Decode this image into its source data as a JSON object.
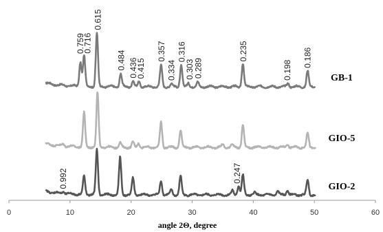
{
  "chart_data": {
    "type": "line",
    "xlabel": "angle 2Θ, degree",
    "ylabel": "",
    "xlim": [
      0,
      60
    ],
    "xticks": [
      "0",
      "10",
      "20",
      "30",
      "40",
      "50",
      "60"
    ],
    "grid": false,
    "series": [
      {
        "name": "GB-1",
        "color": "#7a7a7a",
        "offset": 2.0,
        "peaks": [
          {
            "x": 11.7,
            "h": 0.34
          },
          {
            "x": 12.3,
            "h": 0.43
          },
          {
            "x": 14.4,
            "h": 0.74
          },
          {
            "x": 18.3,
            "h": 0.18
          },
          {
            "x": 20.3,
            "h": 0.08
          },
          {
            "x": 21.3,
            "h": 0.07
          },
          {
            "x": 24.9,
            "h": 0.3
          },
          {
            "x": 26.6,
            "h": 0.04
          },
          {
            "x": 28.2,
            "h": 0.3
          },
          {
            "x": 29.4,
            "h": 0.05
          },
          {
            "x": 30.9,
            "h": 0.06
          },
          {
            "x": 38.3,
            "h": 0.32
          },
          {
            "x": 45.7,
            "h": 0.05
          },
          {
            "x": 48.9,
            "h": 0.22
          }
        ],
        "peak_labels": [
          {
            "x": 11.7,
            "text": "0.759"
          },
          {
            "x": 12.9,
            "text": "0.716"
          },
          {
            "x": 14.6,
            "text": "0.615"
          },
          {
            "x": 18.4,
            "text": "0.484"
          },
          {
            "x": 20.4,
            "text": "0.436"
          },
          {
            "x": 21.6,
            "text": "0.415"
          },
          {
            "x": 25.0,
            "text": "0.357"
          },
          {
            "x": 26.6,
            "text": "0.334"
          },
          {
            "x": 28.3,
            "text": "0.316"
          },
          {
            "x": 29.6,
            "text": "0.303"
          },
          {
            "x": 31.0,
            "text": "0.289"
          },
          {
            "x": 38.4,
            "text": "0.235"
          },
          {
            "x": 45.6,
            "text": "0.198"
          },
          {
            "x": 48.9,
            "text": "0.186"
          }
        ]
      },
      {
        "name": "GIO-5",
        "color": "#b4b4b4",
        "offset": 1.0,
        "peaks": [
          {
            "x": 8.9,
            "h": 0.03
          },
          {
            "x": 12.3,
            "h": 0.47
          },
          {
            "x": 14.5,
            "h": 0.75
          },
          {
            "x": 18.2,
            "h": 0.06
          },
          {
            "x": 20.3,
            "h": 0.07
          },
          {
            "x": 21.2,
            "h": 0.06
          },
          {
            "x": 24.9,
            "h": 0.35
          },
          {
            "x": 28.1,
            "h": 0.24
          },
          {
            "x": 35.0,
            "h": 0.04
          },
          {
            "x": 36.5,
            "h": 0.04
          },
          {
            "x": 38.3,
            "h": 0.31
          },
          {
            "x": 45.6,
            "h": 0.05
          },
          {
            "x": 48.9,
            "h": 0.2
          }
        ],
        "peak_labels": []
      },
      {
        "name": "GIO-2",
        "color": "#555555",
        "offset": 0.0,
        "peaks": [
          {
            "x": 8.9,
            "h": 0.03
          },
          {
            "x": 12.3,
            "h": 0.25
          },
          {
            "x": 14.4,
            "h": 0.62
          },
          {
            "x": 18.2,
            "h": 0.52
          },
          {
            "x": 20.3,
            "h": 0.23
          },
          {
            "x": 24.9,
            "h": 0.2
          },
          {
            "x": 26.6,
            "h": 0.07
          },
          {
            "x": 28.1,
            "h": 0.26
          },
          {
            "x": 36.6,
            "h": 0.06
          },
          {
            "x": 37.6,
            "h": 0.13
          },
          {
            "x": 38.3,
            "h": 0.27
          },
          {
            "x": 40.2,
            "h": 0.03
          },
          {
            "x": 44.0,
            "h": 0.05
          },
          {
            "x": 45.6,
            "h": 0.07
          },
          {
            "x": 48.9,
            "h": 0.21
          }
        ],
        "peak_labels": [
          {
            "x": 8.9,
            "text": "0.992"
          },
          {
            "x": 37.4,
            "text": "0.247"
          }
        ]
      }
    ]
  }
}
